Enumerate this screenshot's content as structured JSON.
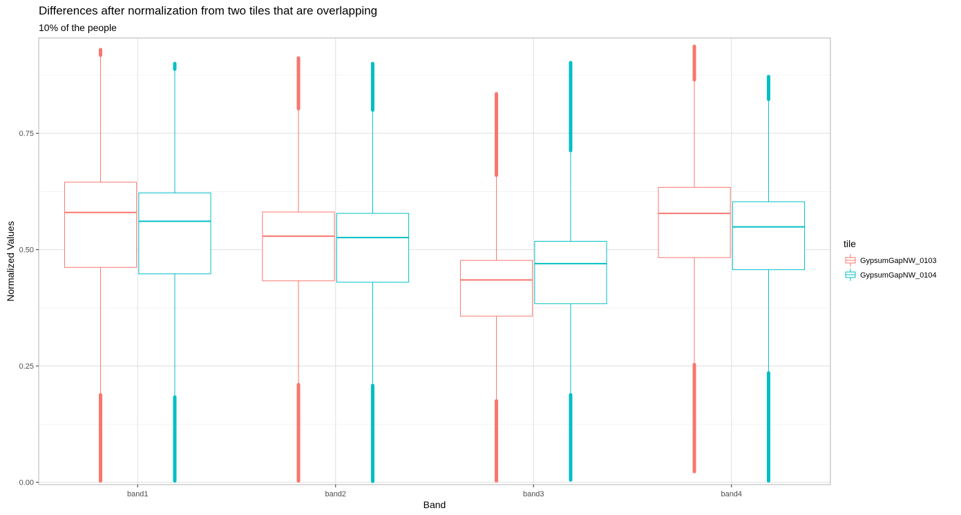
{
  "chart_data": {
    "type": "boxplot",
    "title": "Differences after normalization from two tiles that are overlapping",
    "subtitle": "10% of the people",
    "xlabel": "Band",
    "ylabel": "Normalized Values",
    "ylim": [
      -0.005,
      0.955
    ],
    "yticks": [
      0.0,
      0.25,
      0.5,
      0.75
    ],
    "ytick_labels": [
      "0.00",
      "0.25",
      "0.50",
      "0.75"
    ],
    "categories": [
      "band1",
      "band2",
      "band3",
      "band4"
    ],
    "legend": {
      "title": "tile",
      "position": "right"
    },
    "grid": true,
    "series": [
      {
        "name": "GypsumGapNW_0103",
        "color": "#F8766D",
        "boxes": [
          {
            "q1": 0.462,
            "median": 0.58,
            "q3": 0.645,
            "whisker_low": 0.188,
            "whisker_high": 0.918,
            "outliers_low": [
              0.003,
              0.188
            ],
            "outliers_high": [
              0.918,
              0.93
            ]
          },
          {
            "q1": 0.433,
            "median": 0.529,
            "q3": 0.581,
            "whisker_low": 0.21,
            "whisker_high": 0.803,
            "outliers_low": [
              0.003,
              0.21
            ],
            "outliers_high": [
              0.803,
              0.912
            ]
          },
          {
            "q1": 0.357,
            "median": 0.435,
            "q3": 0.477,
            "whisker_low": 0.175,
            "whisker_high": 0.66,
            "outliers_low": [
              0.003,
              0.175
            ],
            "outliers_high": [
              0.66,
              0.835
            ]
          },
          {
            "q1": 0.483,
            "median": 0.578,
            "q3": 0.634,
            "whisker_low": 0.253,
            "whisker_high": 0.865,
            "outliers_low": [
              0.023,
              0.253
            ],
            "outliers_high": [
              0.865,
              0.937
            ]
          }
        ]
      },
      {
        "name": "GypsumGapNW_0104",
        "color": "#00BFC4",
        "boxes": [
          {
            "q1": 0.448,
            "median": 0.561,
            "q3": 0.622,
            "whisker_low": 0.183,
            "whisker_high": 0.888,
            "outliers_low": [
              0.003,
              0.183
            ],
            "outliers_high": [
              0.888,
              0.9
            ]
          },
          {
            "q1": 0.43,
            "median": 0.526,
            "q3": 0.578,
            "whisker_low": 0.208,
            "whisker_high": 0.8,
            "outliers_low": [
              0.002,
              0.208
            ],
            "outliers_high": [
              0.8,
              0.9
            ]
          },
          {
            "q1": 0.384,
            "median": 0.47,
            "q3": 0.518,
            "whisker_low": 0.188,
            "whisker_high": 0.713,
            "outliers_low": [
              0.005,
              0.188
            ],
            "outliers_high": [
              0.713,
              0.902
            ]
          },
          {
            "q1": 0.457,
            "median": 0.549,
            "q3": 0.603,
            "whisker_low": 0.235,
            "whisker_high": 0.823,
            "outliers_low": [
              0.003,
              0.235
            ],
            "outliers_high": [
              0.823,
              0.872
            ]
          }
        ]
      }
    ]
  }
}
